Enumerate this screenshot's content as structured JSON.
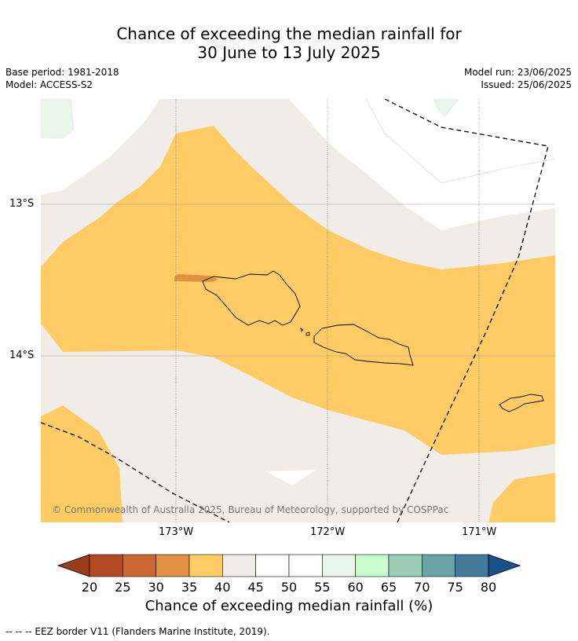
{
  "header": {
    "title_line1": "Chance of exceeding the median rainfall for",
    "title_line2": "30 June to 13 July 2025",
    "base_period": "Base period: 1981-2018",
    "model": "Model: ACCESS-S2",
    "model_run": "Model run: 23/06/2025",
    "issued": "Issued: 25/06/2025"
  },
  "map": {
    "lat_labels": [
      "13°S",
      "14°S"
    ],
    "lon_labels": [
      "173°W",
      "172°W",
      "171°W"
    ],
    "copyright": "© Commonwealth of Australia 2025, Bureau of Meteorology, supported by COSPPac"
  },
  "colorbar": {
    "title": "Chance of exceeding median rainfall (%)",
    "ticks": [
      "20",
      "25",
      "30",
      "35",
      "40",
      "45",
      "50",
      "55",
      "60",
      "65",
      "70",
      "75",
      "80"
    ],
    "colors": {
      "below_20": "#9c3a1f",
      "20_25": "#b24a26",
      "25_30": "#cd6630",
      "30_35": "#df9341",
      "35_40": "#fecb65",
      "40_45": "#f0ece7",
      "45_50": "#ffffff",
      "50_55": "#ffffff",
      "55_60": "#e8f5e8",
      "60_65": "#c9fccc",
      "65_70": "#9bceb6",
      "70_75": "#6aa2a8",
      "75_80": "#447a9a",
      "above_80": "#1a4f89"
    }
  },
  "footnote": "--  --  -- EEZ border V11 (Flanders Marine Institute, 2019)."
}
